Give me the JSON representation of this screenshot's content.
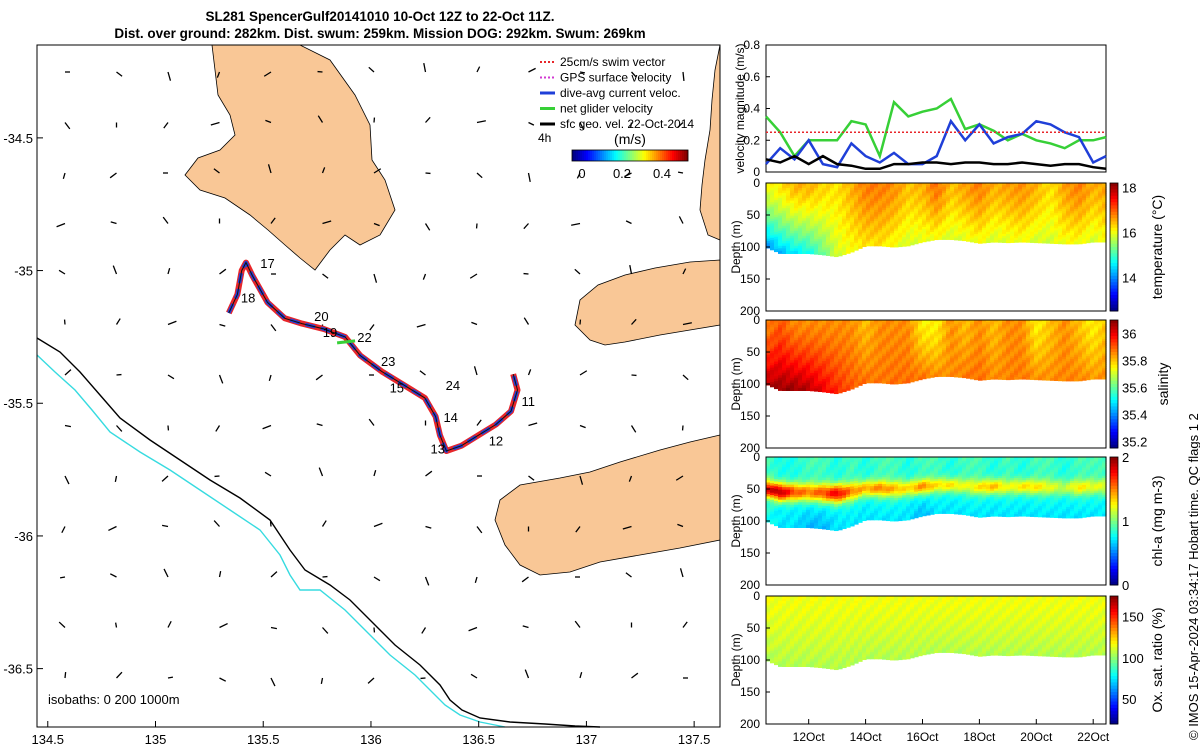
{
  "title_line1": "SL281 SpencerGulf20141010 10-Oct 12Z to 22-Oct 11Z.",
  "title_line2": "Dist. over ground: 282km. Dist. swum: 259km. Mission DOG: 292km. Swum: 269km",
  "map": {
    "xticks": [
      "134.5",
      "135",
      "135.5",
      "136",
      "136.5",
      "137",
      "137.5"
    ],
    "xtick_values": [
      134.5,
      135,
      135.5,
      136,
      136.5,
      137,
      137.5
    ],
    "yticks": [
      "-34.5",
      "-35",
      "-35.5",
      "-36",
      "-36.5"
    ],
    "ytick_values": [
      -34.5,
      -35,
      -35.5,
      -36,
      -36.5
    ],
    "xlim": [
      134.45,
      137.62
    ],
    "ylim": [
      -36.72,
      -34.15
    ],
    "legend": [
      {
        "label": "25cm/s swim vector",
        "color": "#e8262a"
      },
      {
        "label": "GPS surface velocity",
        "color": "#d23ad2"
      },
      {
        "label": "dive-avg current veloc.",
        "color": "#1f3fd8"
      },
      {
        "label": "net glider velocity",
        "color": "#37d037"
      },
      {
        "label": "sfc geo. vel. 22-Oct-2014",
        "color": "#000000"
      }
    ],
    "colorbar_label": "(m/s)",
    "colorbar_ticks": [
      "0",
      "0.2",
      "0.4"
    ],
    "scale_label": "4h",
    "isobaths_label": "isobaths: 0   200  1000m",
    "day_labels": [
      {
        "t": "17",
        "lon": 135.52,
        "lat": -34.99
      },
      {
        "t": "18",
        "lon": 135.43,
        "lat": -35.12
      },
      {
        "t": "20",
        "lon": 135.77,
        "lat": -35.19
      },
      {
        "t": "19",
        "lon": 135.81,
        "lat": -35.25
      },
      {
        "t": "22",
        "lon": 135.97,
        "lat": -35.27
      },
      {
        "t": "23",
        "lon": 136.08,
        "lat": -35.36
      },
      {
        "t": "24",
        "lon": 136.38,
        "lat": -35.45
      },
      {
        "t": "15",
        "lon": 136.12,
        "lat": -35.46
      },
      {
        "t": "14",
        "lon": 136.37,
        "lat": -35.57
      },
      {
        "t": "11",
        "lon": 136.73,
        "lat": -35.51
      },
      {
        "t": "12",
        "lon": 136.58,
        "lat": -35.66
      },
      {
        "t": "13",
        "lon": 136.31,
        "lat": -35.69
      }
    ],
    "track": [
      [
        135.34,
        -35.16
      ],
      [
        135.38,
        -35.09
      ],
      [
        135.4,
        -35.0
      ],
      [
        135.42,
        -34.97
      ],
      [
        135.45,
        -35.02
      ],
      [
        135.52,
        -35.12
      ],
      [
        135.6,
        -35.18
      ],
      [
        135.68,
        -35.2
      ],
      [
        135.78,
        -35.22
      ],
      [
        135.88,
        -35.25
      ],
      [
        135.95,
        -35.32
      ],
      [
        136.05,
        -35.38
      ],
      [
        136.15,
        -35.43
      ],
      [
        136.25,
        -35.48
      ],
      [
        136.3,
        -35.55
      ],
      [
        136.32,
        -35.62
      ],
      [
        136.35,
        -35.68
      ],
      [
        136.42,
        -35.66
      ],
      [
        136.5,
        -35.62
      ],
      [
        136.58,
        -35.58
      ],
      [
        136.65,
        -35.53
      ],
      [
        136.68,
        -35.45
      ],
      [
        136.66,
        -35.39
      ]
    ]
  },
  "panels": {
    "vel_ylabel": "velocity magnitude (m/s)",
    "vel_ylim": [
      0,
      0.8
    ],
    "vel_yticks": [
      "0",
      "0.2",
      "0.4",
      "0.6",
      "0.8"
    ],
    "depth_ylabel": "Depth (m)",
    "depth_yticks": [
      "0",
      "50",
      "100",
      "150",
      "200"
    ],
    "xticks": [
      "12Oct",
      "14Oct",
      "16Oct",
      "18Oct",
      "20Oct",
      "22Oct"
    ],
    "xtick_days": [
      12,
      14,
      16,
      18,
      20,
      22
    ],
    "time_range": [
      10.5,
      22.45
    ],
    "colorbars": [
      {
        "label": "temperature (°C)",
        "ticks": [
          "18",
          "16",
          "14"
        ],
        "tick_values": [
          18,
          16,
          14
        ],
        "range": [
          12.5,
          18.2
        ]
      },
      {
        "label": "salinity",
        "ticks": [
          "36",
          "35.8",
          "35.6",
          "35.4",
          "35.2"
        ],
        "tick_values": [
          36,
          35.8,
          35.6,
          35.4,
          35.2
        ],
        "range": [
          35.15,
          36.1
        ]
      },
      {
        "label": "chl-a (mg m-3)",
        "ticks": [
          "2",
          "1",
          "0"
        ],
        "tick_values": [
          2,
          1,
          0
        ],
        "range": [
          0,
          2
        ]
      },
      {
        "label": "Ox. sat. ratio (%)",
        "ticks": [
          "150",
          "100",
          "50"
        ],
        "tick_values": [
          150,
          100,
          50
        ],
        "range": [
          20,
          175
        ]
      }
    ]
  },
  "chart_data": [
    {
      "type": "line",
      "title": "velocity magnitude",
      "xlabel": "",
      "ylabel": "velocity magnitude (m/s)",
      "ylim": [
        0,
        0.8
      ],
      "x": [
        10.5,
        11,
        11.5,
        12,
        12.5,
        13,
        13.5,
        14,
        14.5,
        15,
        15.5,
        16,
        16.5,
        17,
        17.5,
        18,
        18.5,
        19,
        19.5,
        20,
        20.5,
        21,
        21.5,
        22,
        22.45
      ],
      "series": [
        {
          "name": "net glider velocity",
          "color": "#37d037",
          "values": [
            0.35,
            0.25,
            0.1,
            0.2,
            0.2,
            0.2,
            0.32,
            0.3,
            0.1,
            0.44,
            0.35,
            0.38,
            0.4,
            0.46,
            0.27,
            0.3,
            0.26,
            0.2,
            0.24,
            0.2,
            0.18,
            0.15,
            0.2,
            0.2,
            0.22
          ]
        },
        {
          "name": "dive-avg current veloc.",
          "color": "#1f3fd8",
          "values": [
            0.05,
            0.15,
            0.08,
            0.2,
            0.05,
            0.03,
            0.18,
            0.1,
            0.06,
            0.12,
            0.05,
            0.05,
            0.1,
            0.32,
            0.2,
            0.3,
            0.18,
            0.22,
            0.24,
            0.32,
            0.3,
            0.25,
            0.22,
            0.06,
            0.1
          ]
        },
        {
          "name": "25cm/s swim vector",
          "color": "#e8262a",
          "values": [
            0.25,
            0.25,
            0.25,
            0.25,
            0.25,
            0.25,
            0.25,
            0.25,
            0.25,
            0.25,
            0.25,
            0.25,
            0.25,
            0.25,
            0.25,
            0.25,
            0.25,
            0.25,
            0.25,
            0.25,
            0.25,
            0.25,
            0.25,
            0.25,
            0.25
          ]
        },
        {
          "name": "sfc geo. vel.",
          "color": "#000000",
          "values": [
            0.08,
            0.06,
            0.1,
            0.05,
            0.1,
            0.05,
            0.04,
            0.02,
            0.02,
            0.05,
            0.05,
            0.06,
            0.06,
            0.05,
            0.06,
            0.06,
            0.05,
            0.05,
            0.06,
            0.05,
            0.04,
            0.05,
            0.05,
            0.03,
            0.02
          ]
        }
      ]
    },
    {
      "type": "heatmap",
      "title": "temperature",
      "ylabel": "Depth (m)",
      "ylim": [
        0,
        200
      ],
      "x": [
        10.5,
        11,
        11.5,
        12,
        12.5,
        13,
        13.5,
        14,
        14.5,
        15,
        15.5,
        16,
        16.5,
        17,
        17.5,
        18,
        18.5,
        19,
        19.5,
        20,
        20.5,
        21,
        21.5,
        22,
        22.45
      ],
      "max_depth": [
        100,
        110,
        110,
        110,
        112,
        115,
        108,
        98,
        98,
        100,
        98,
        92,
        88,
        88,
        90,
        94,
        92,
        93,
        92,
        93,
        94,
        95,
        95,
        92,
        92
      ],
      "surface_value": [
        16.0,
        16.2,
        16.5,
        16.5,
        16.3,
        16.2,
        16.5,
        16.8,
        16.8,
        16.7,
        16.4,
        16.5,
        16.9,
        16.4,
        16.6,
        16.8,
        16.5,
        16.6,
        16.7,
        16.5,
        16.2,
        16.6,
        16.8,
        16.5,
        16.6
      ],
      "bottom_value": [
        14.0,
        14.2,
        14.5,
        14.7,
        15.2,
        15.8,
        16.0,
        16.2,
        16.2,
        16.0,
        15.8,
        15.9,
        16.0,
        15.8,
        15.9,
        16.0,
        15.8,
        15.9,
        16.0,
        15.8,
        15.8,
        16.0,
        16.0,
        15.8,
        16.0
      ]
    },
    {
      "type": "heatmap",
      "title": "salinity",
      "ylabel": "Depth (m)",
      "ylim": [
        0,
        200
      ],
      "x": [
        10.5,
        11,
        11.5,
        12,
        12.5,
        13,
        13.5,
        14,
        14.5,
        15,
        15.5,
        16,
        16.5,
        17,
        17.5,
        18,
        18.5,
        19,
        19.5,
        20,
        20.5,
        21,
        21.5,
        22,
        22.45
      ],
      "max_depth": [
        100,
        110,
        110,
        110,
        112,
        115,
        108,
        98,
        98,
        100,
        98,
        92,
        88,
        88,
        90,
        94,
        92,
        93,
        92,
        93,
        94,
        95,
        95,
        92,
        92
      ],
      "surface_value": [
        35.85,
        35.9,
        35.85,
        35.85,
        35.85,
        35.85,
        35.85,
        35.8,
        35.85,
        35.85,
        35.85,
        35.75,
        35.75,
        35.85,
        35.8,
        35.85,
        35.8,
        35.85,
        35.85,
        35.75,
        35.8,
        35.85,
        35.8,
        35.75,
        35.8
      ],
      "bottom_value": [
        36.05,
        36.08,
        36.08,
        36.05,
        36.0,
        35.95,
        35.9,
        35.88,
        35.87,
        35.88,
        35.88,
        35.88,
        35.85,
        35.85,
        35.87,
        35.88,
        35.85,
        35.86,
        35.87,
        35.85,
        35.85,
        35.86,
        35.86,
        35.84,
        35.85
      ]
    },
    {
      "type": "heatmap",
      "title": "chl-a",
      "ylabel": "Depth (m)",
      "ylim": [
        0,
        200
      ],
      "x": [
        10.5,
        11,
        11.5,
        12,
        12.5,
        13,
        13.5,
        14,
        14.5,
        15,
        15.5,
        16,
        16.5,
        17,
        17.5,
        18,
        18.5,
        19,
        19.5,
        20,
        20.5,
        21,
        21.5,
        22,
        22.45
      ],
      "max_depth": [
        100,
        110,
        110,
        110,
        112,
        115,
        108,
        98,
        98,
        100,
        98,
        92,
        88,
        88,
        90,
        94,
        92,
        93,
        92,
        93,
        94,
        95,
        95,
        92,
        92
      ],
      "surface_value": [
        0.9,
        0.8,
        0.8,
        0.9,
        0.9,
        0.8,
        0.9,
        0.8,
        0.9,
        0.9,
        0.8,
        0.9,
        0.9,
        0.8,
        0.9,
        0.9,
        0.8,
        0.9,
        0.8,
        0.9,
        0.9,
        0.8,
        0.9,
        0.9,
        0.9
      ],
      "subsurface_max": [
        1.8,
        1.9,
        1.6,
        1.5,
        1.6,
        1.8,
        1.5,
        1.4,
        1.5,
        1.4,
        1.3,
        1.5,
        1.3,
        1.3,
        1.2,
        1.3,
        1.4,
        1.2,
        1.3,
        1.3,
        1.2,
        1.1,
        1.3,
        1.2,
        1.2
      ],
      "bottom_value": [
        0.8,
        0.7,
        0.7,
        0.6,
        0.6,
        0.7,
        0.7,
        0.7,
        0.7,
        0.7,
        0.7,
        0.6,
        0.7,
        0.7,
        0.7,
        0.7,
        0.7,
        0.7,
        0.7,
        0.7,
        0.7,
        0.7,
        0.7,
        0.7,
        0.7
      ]
    },
    {
      "type": "heatmap",
      "title": "Ox. sat. ratio",
      "ylabel": "Depth (m)",
      "ylim": [
        0,
        200
      ],
      "x": [
        10.5,
        11,
        11.5,
        12,
        12.5,
        13,
        13.5,
        14,
        14.5,
        15,
        15.5,
        16,
        16.5,
        17,
        17.5,
        18,
        18.5,
        19,
        19.5,
        20,
        20.5,
        21,
        21.5,
        22,
        22.45
      ],
      "max_depth": [
        100,
        110,
        110,
        110,
        112,
        115,
        108,
        98,
        98,
        100,
        98,
        92,
        88,
        88,
        90,
        94,
        92,
        93,
        92,
        93,
        94,
        95,
        95,
        92,
        92
      ],
      "surface_value": [
        115,
        115,
        115,
        115,
        115,
        115,
        115,
        115,
        115,
        115,
        115,
        115,
        115,
        115,
        115,
        115,
        115,
        115,
        115,
        115,
        115,
        115,
        115,
        115,
        115
      ],
      "bottom_value": [
        105,
        105,
        105,
        105,
        105,
        105,
        105,
        105,
        105,
        105,
        105,
        105,
        105,
        105,
        105,
        105,
        105,
        105,
        105,
        105,
        105,
        105,
        105,
        105,
        105
      ]
    }
  ],
  "side_note": "© IMOS 15-Apr-2024 03:34:17 Hobart time. QC flags 1  2"
}
